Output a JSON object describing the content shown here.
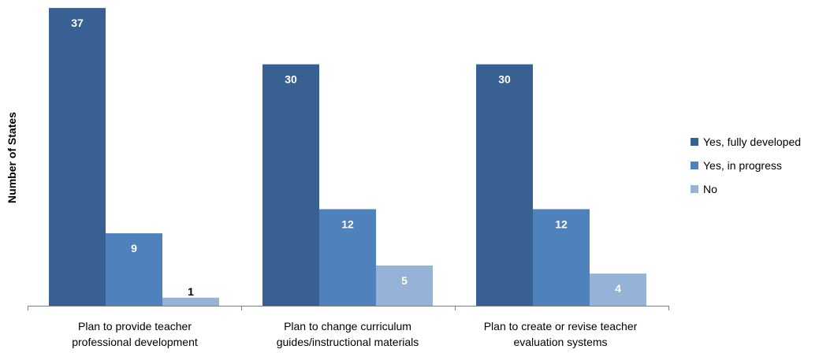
{
  "chart_data": {
    "type": "bar",
    "title": "",
    "xlabel": "",
    "ylabel": "Number of States",
    "ylim": [
      0,
      37.6
    ],
    "grid": false,
    "legend_position": "right",
    "categories": [
      [
        "Plan to provide teacher",
        "professional development"
      ],
      [
        "Plan to change curriculum",
        "guides/instructional materials"
      ],
      [
        "Plan to create or revise teacher",
        "evaluation systems"
      ]
    ],
    "series": [
      {
        "name": "Yes, fully developed",
        "color": "#386092",
        "label_color": "#ffffff",
        "values": [
          37,
          30,
          30
        ]
      },
      {
        "name": "Yes, in progress",
        "color": "#4f81bd",
        "label_color": "#ffffff",
        "values": [
          9,
          12,
          12
        ]
      },
      {
        "name": "No",
        "color": "#95b3d7",
        "label_color": "#ffffff",
        "values": [
          1,
          5,
          4
        ]
      }
    ]
  }
}
